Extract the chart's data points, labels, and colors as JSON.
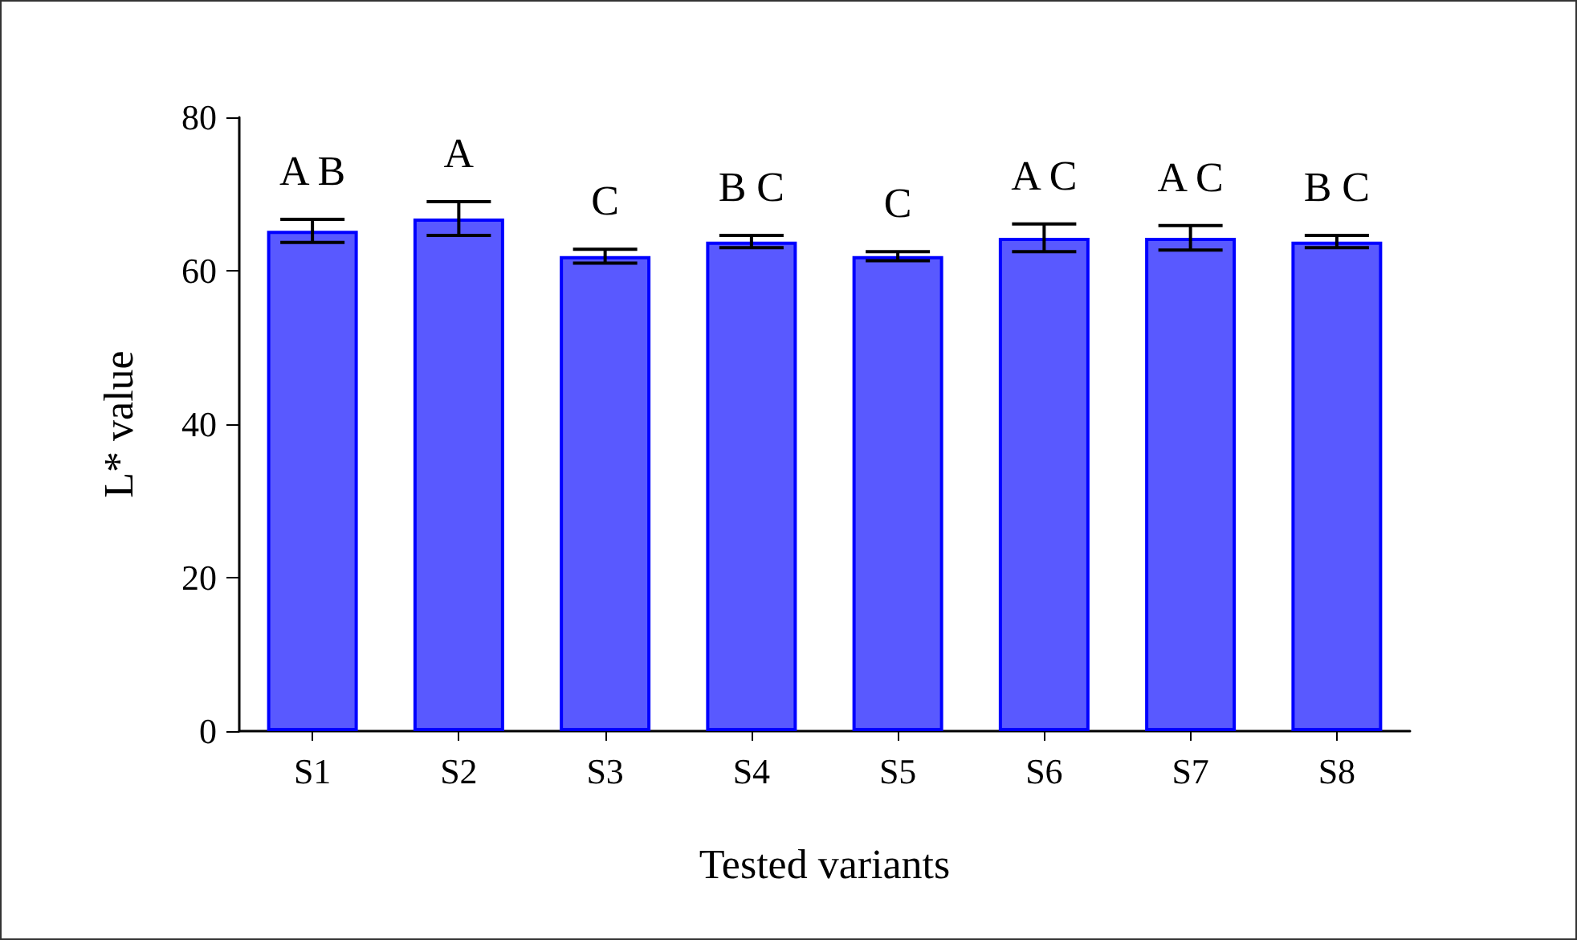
{
  "chart_data": {
    "type": "bar",
    "xlabel": "Tested variants",
    "ylabel": "L* value",
    "categories": [
      "S1",
      "S2",
      "S3",
      "S4",
      "S5",
      "S6",
      "S7",
      "S8"
    ],
    "values": [
      65.2,
      66.8,
      61.9,
      63.8,
      61.9,
      64.3,
      64.3,
      63.8
    ],
    "errors": [
      1.5,
      2.2,
      0.9,
      0.8,
      0.6,
      1.8,
      1.6,
      0.8
    ],
    "color": "#0000ff",
    "ylim": [
      0,
      80
    ],
    "yticks": [
      0,
      20,
      40,
      60,
      80
    ],
    "grid": false,
    "annotations": [
      "A B",
      "A",
      "C",
      "B C",
      "C",
      "A C",
      "A C",
      "B C"
    ]
  }
}
